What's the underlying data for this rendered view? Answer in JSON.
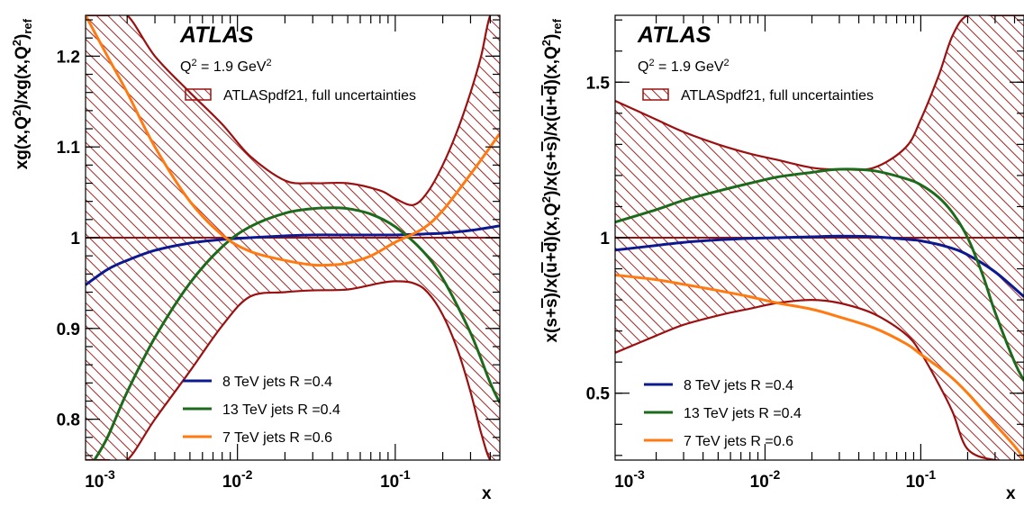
{
  "colors": {
    "band": "#9b1010",
    "nominal": "#9b1010",
    "s8": "#0d1a8f",
    "s13": "#1c6b1c",
    "s7": "#ff7a10"
  },
  "chart_data": [
    {
      "type": "line",
      "ylabel_html": "xg(x,Q<tspan dy=\"-7\" font-size=\"13\">2</tspan><tspan dy=\"7\">)/xg(x,Q</tspan><tspan dy=\"-7\" font-size=\"13\">2</tspan><tspan dy=\"7\">)</tspan><tspan dy=\"5\" font-size=\"13\">ref</tspan>",
      "xlabel": "x",
      "xscale": "log",
      "xlim": [
        0.00109,
        0.46
      ],
      "ylim": [
        0.755,
        1.245
      ],
      "xticks": [
        {
          "v": 0.001,
          "e": "-3"
        },
        {
          "v": 0.01,
          "e": "-2"
        },
        {
          "v": 0.1,
          "e": "-1"
        }
      ],
      "yticks": [
        {
          "v": 0.8,
          "l": "0.8"
        },
        {
          "v": 0.9,
          "l": "0.9"
        },
        {
          "v": 1.0,
          "l": "1"
        },
        {
          "v": 1.1,
          "l": "1.1"
        },
        {
          "v": 1.2,
          "l": "1.2"
        }
      ],
      "experiment": "ATLAS",
      "scale_label_html": "Q<tspan dy=\"-6\" font-size=\"11\">2</tspan><tspan dy=\"6\"> = 1.9 GeV</tspan><tspan dy=\"-6\" font-size=\"11\">2</tspan>",
      "band_label": "ATLASpdf21, full uncertainties",
      "band": {
        "x": [
          0.00109,
          0.0015,
          0.002,
          0.003,
          0.005,
          0.008,
          0.012,
          0.02,
          0.03,
          0.05,
          0.08,
          0.1,
          0.13,
          0.16,
          0.2,
          0.25,
          0.3,
          0.35,
          0.4,
          0.46
        ],
        "upper": [
          1.245,
          1.245,
          1.245,
          1.2,
          1.16,
          1.125,
          1.09,
          1.063,
          1.06,
          1.06,
          1.052,
          1.043,
          1.036,
          1.05,
          1.08,
          1.12,
          1.16,
          1.2,
          1.245,
          1.245
        ],
        "lower": [
          0.755,
          0.755,
          0.755,
          0.8,
          0.853,
          0.903,
          0.935,
          0.94,
          0.942,
          0.943,
          0.95,
          0.952,
          0.95,
          0.94,
          0.915,
          0.875,
          0.83,
          0.785,
          0.755,
          0.755
        ]
      },
      "series": [
        {
          "name": "8 TeV jets R =0.4",
          "color": "s8",
          "x": [
            0.00109,
            0.0015,
            0.002,
            0.003,
            0.005,
            0.008,
            0.012,
            0.02,
            0.03,
            0.05,
            0.08,
            0.1,
            0.15,
            0.2,
            0.3,
            0.46
          ],
          "y": [
            0.948,
            0.965,
            0.975,
            0.986,
            0.994,
            0.998,
            1.0,
            1.002,
            1.003,
            1.003,
            1.003,
            1.003,
            1.004,
            1.005,
            1.008,
            1.013
          ]
        },
        {
          "name": "13 TeV jets R =0.4",
          "color": "s13",
          "x": [
            0.00124,
            0.0015,
            0.002,
            0.003,
            0.005,
            0.008,
            0.012,
            0.02,
            0.03,
            0.04,
            0.05,
            0.07,
            0.1,
            0.15,
            0.2,
            0.3,
            0.4,
            0.46
          ],
          "y": [
            0.755,
            0.78,
            0.83,
            0.89,
            0.95,
            0.99,
            1.012,
            1.027,
            1.032,
            1.033,
            1.032,
            1.026,
            1.012,
            0.985,
            0.955,
            0.895,
            0.84,
            0.818
          ]
        },
        {
          "name": "7 TeV jets R =0.6",
          "color": "s7",
          "x": [
            0.00109,
            0.0015,
            0.002,
            0.003,
            0.005,
            0.008,
            0.012,
            0.02,
            0.03,
            0.04,
            0.05,
            0.07,
            0.1,
            0.15,
            0.2,
            0.3,
            0.4,
            0.46
          ],
          "y": [
            1.245,
            1.2,
            1.16,
            1.1,
            1.04,
            1.003,
            0.985,
            0.975,
            0.97,
            0.97,
            0.972,
            0.98,
            0.995,
            1.01,
            1.03,
            1.07,
            1.1,
            1.115
          ]
        }
      ]
    },
    {
      "type": "line",
      "ylabel_html": "x(s+<tspan text-decoration=\"overline\">s</tspan>)/x(<tspan text-decoration=\"overline\">u</tspan>+<tspan text-decoration=\"overline\">d</tspan>)(x,Q<tspan dy=\"-7\" font-size=\"13\">2</tspan><tspan dy=\"7\">)/x(s+</tspan><tspan text-decoration=\"overline\">s</tspan>)/x(<tspan text-decoration=\"overline\">u</tspan>+<tspan text-decoration=\"overline\">d</tspan>)(x,Q<tspan dy=\"-7\" font-size=\"13\">2</tspan><tspan dy=\"7\">)</tspan><tspan dy=\"5\" font-size=\"13\">ref</tspan>",
      "xlabel": "x",
      "xscale": "log",
      "xlim": [
        0.00109,
        0.46
      ],
      "ylim": [
        0.285,
        1.715
      ],
      "xticks": [
        {
          "v": 0.001,
          "e": "-3"
        },
        {
          "v": 0.01,
          "e": "-2"
        },
        {
          "v": 0.1,
          "e": "-1"
        }
      ],
      "yticks": [
        {
          "v": 0.5,
          "l": "0.5"
        },
        {
          "v": 1.0,
          "l": "1"
        },
        {
          "v": 1.5,
          "l": "1.5"
        }
      ],
      "experiment": "ATLAS",
      "scale_label_html": "Q<tspan dy=\"-6\" font-size=\"11\">2</tspan><tspan dy=\"6\"> = 1.9 GeV</tspan><tspan dy=\"-6\" font-size=\"11\">2</tspan>",
      "band_label": "ATLASpdf21, full uncertainties",
      "band": {
        "x": [
          0.00109,
          0.002,
          0.003,
          0.005,
          0.008,
          0.012,
          0.02,
          0.03,
          0.05,
          0.08,
          0.1,
          0.13,
          0.16,
          0.2,
          0.3,
          0.46
        ],
        "upper": [
          1.44,
          1.38,
          1.34,
          1.3,
          1.27,
          1.25,
          1.225,
          1.22,
          1.225,
          1.29,
          1.38,
          1.52,
          1.65,
          1.715,
          1.715,
          1.715
        ],
        "lower": [
          0.63,
          0.685,
          0.72,
          0.75,
          0.772,
          0.79,
          0.8,
          0.79,
          0.755,
          0.69,
          0.63,
          0.53,
          0.44,
          0.32,
          0.285,
          0.285
        ]
      },
      "series": [
        {
          "name": "8 TeV jets R =0.4",
          "color": "s8",
          "x": [
            0.00109,
            0.002,
            0.003,
            0.005,
            0.008,
            0.012,
            0.02,
            0.03,
            0.05,
            0.08,
            0.1,
            0.15,
            0.2,
            0.3,
            0.46
          ],
          "y": [
            0.96,
            0.975,
            0.985,
            0.993,
            0.998,
            1.0,
            1.003,
            1.005,
            1.003,
            0.995,
            0.99,
            0.97,
            0.945,
            0.89,
            0.81
          ]
        },
        {
          "name": "13 TeV jets R =0.4",
          "color": "s13",
          "x": [
            0.00109,
            0.002,
            0.003,
            0.005,
            0.008,
            0.012,
            0.02,
            0.03,
            0.05,
            0.08,
            0.1,
            0.13,
            0.16,
            0.2,
            0.25,
            0.3,
            0.4,
            0.46
          ],
          "y": [
            1.05,
            1.09,
            1.12,
            1.15,
            1.175,
            1.195,
            1.21,
            1.22,
            1.215,
            1.19,
            1.17,
            1.13,
            1.08,
            1.0,
            0.88,
            0.76,
            0.6,
            0.54
          ]
        },
        {
          "name": "7 TeV jets R =0.6",
          "color": "s7",
          "x": [
            0.00109,
            0.002,
            0.003,
            0.005,
            0.008,
            0.012,
            0.02,
            0.03,
            0.05,
            0.08,
            0.1,
            0.15,
            0.2,
            0.3,
            0.4,
            0.46
          ],
          "y": [
            0.88,
            0.865,
            0.85,
            0.83,
            0.81,
            0.79,
            0.77,
            0.745,
            0.71,
            0.66,
            0.625,
            0.56,
            0.5,
            0.4,
            0.33,
            0.29
          ]
        }
      ]
    }
  ]
}
